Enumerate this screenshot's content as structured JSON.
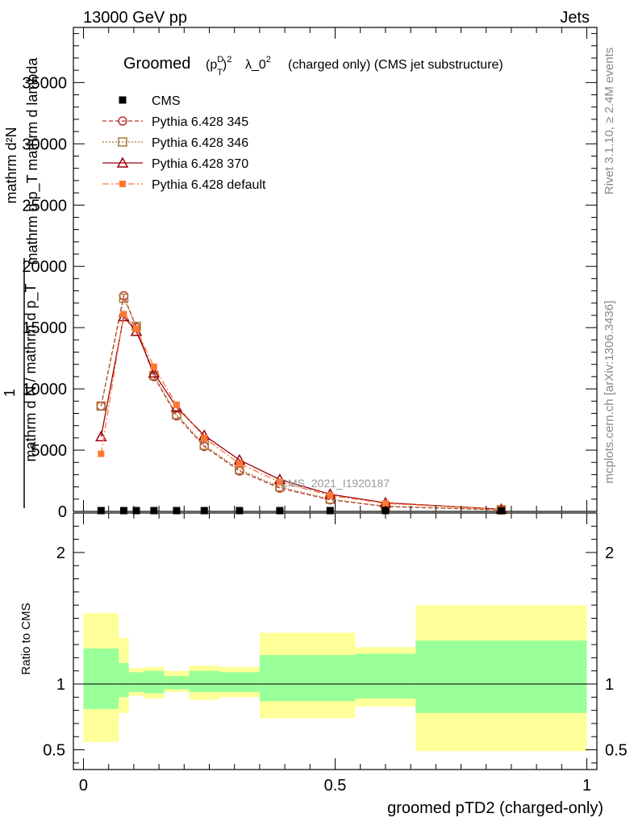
{
  "header": {
    "left": "13000 GeV pp",
    "right": "Jets"
  },
  "plot_title": {
    "pre": "Groomed",
    "post": "λ_0",
    "tail": "  (charged only) (CMS jet substructure)"
  },
  "side_labels": {
    "top": "Rivet 3.1.10, ≥ 2.4M events",
    "bottom": "mcplots.cern.ch [arXiv:1306.3436]"
  },
  "watermark": "CMS_2021_I1920187",
  "colors": {
    "frame": "#000000",
    "green_band": "#99ff99",
    "yellow_band": "#ffff99",
    "p345": "#bb3333",
    "p346": "#aa7733",
    "p370": "#990011",
    "pdef": "#ff7733"
  },
  "chart_data": [
    {
      "type": "line",
      "ylabel_lines": [
        "mathrm d²N",
        "mathrm d p_T mathrm d lambda",
        "1",
        "mathrm d N / mathrm d p_T"
      ],
      "xlim": [
        -0.02,
        1.02
      ],
      "ylim": [
        0,
        39500
      ],
      "y_ticks": [
        0,
        5000,
        10000,
        15000,
        20000,
        25000,
        30000,
        35000
      ],
      "y_tick_labels": [
        "0",
        "5000",
        "10000",
        "15000",
        "20000",
        "25000",
        "30000",
        "35000"
      ],
      "legend_position": "top-left",
      "x": [
        0.035,
        0.08,
        0.105,
        0.14,
        0.185,
        0.24,
        0.31,
        0.39,
        0.49,
        0.6,
        0.83
      ],
      "series": [
        {
          "name": "CMS",
          "marker": "filled-square",
          "color": "#000000",
          "values": [
            0,
            0,
            0,
            0,
            0,
            0,
            0,
            0,
            0,
            0,
            0
          ]
        },
        {
          "name": "Pythia 6.428 345",
          "marker": "open-circle",
          "color": "#bb3333",
          "dash": "5,3",
          "values": [
            8600,
            17600,
            15000,
            11000,
            7800,
            5300,
            3300,
            1900,
            950,
            400,
            120
          ]
        },
        {
          "name": "Pythia 6.428 346",
          "marker": "open-square",
          "color": "#aa7733",
          "dash": "2,2",
          "values": [
            8600,
            17400,
            15100,
            11100,
            7900,
            5400,
            3400,
            2000,
            1000,
            420,
            130
          ]
        },
        {
          "name": "Pythia 6.428 370",
          "marker": "open-triangle",
          "color": "#990011",
          "dash": "",
          "values": [
            6100,
            15900,
            14700,
            11300,
            8500,
            6200,
            4200,
            2600,
            1400,
            700,
            180
          ]
        },
        {
          "name": "Pythia 6.428 default",
          "marker": "filled-square-small",
          "color": "#ff7733",
          "dash": "8,3,2,3",
          "values": [
            4700,
            16100,
            14900,
            11800,
            8700,
            6000,
            3900,
            2400,
            1300,
            650,
            170
          ]
        }
      ]
    },
    {
      "type": "area",
      "ylabel": "Ratio to CMS",
      "xlabel": "groomed pTD2 (charged-only)",
      "xlim": [
        -0.02,
        1.02
      ],
      "ylim": [
        0.35,
        2.3
      ],
      "x_ticks": [
        0,
        0.5,
        1
      ],
      "x_tick_labels": [
        "0",
        "0.5",
        "1"
      ],
      "y_ticks": [
        0.5,
        1,
        2
      ],
      "y_tick_labels": [
        "0.5",
        "1",
        "2"
      ],
      "reference_line": 1,
      "bin_edges": [
        0,
        0.07,
        0.09,
        0.12,
        0.16,
        0.21,
        0.27,
        0.35,
        0.54,
        0.66,
        1.0
      ],
      "green_band": {
        "upper": [
          1.27,
          1.16,
          1.09,
          1.1,
          1.06,
          1.1,
          1.09,
          1.22,
          1.23,
          1.33
        ],
        "lower": [
          0.81,
          0.9,
          0.94,
          0.93,
          0.96,
          0.94,
          0.94,
          0.87,
          0.89,
          0.78
        ]
      },
      "yellow_band": {
        "upper": [
          1.54,
          1.35,
          1.12,
          1.13,
          1.1,
          1.14,
          1.13,
          1.39,
          1.28,
          1.6
        ],
        "lower": [
          0.56,
          0.78,
          0.91,
          0.89,
          0.94,
          0.88,
          0.9,
          0.74,
          0.83,
          0.49
        ]
      }
    }
  ]
}
